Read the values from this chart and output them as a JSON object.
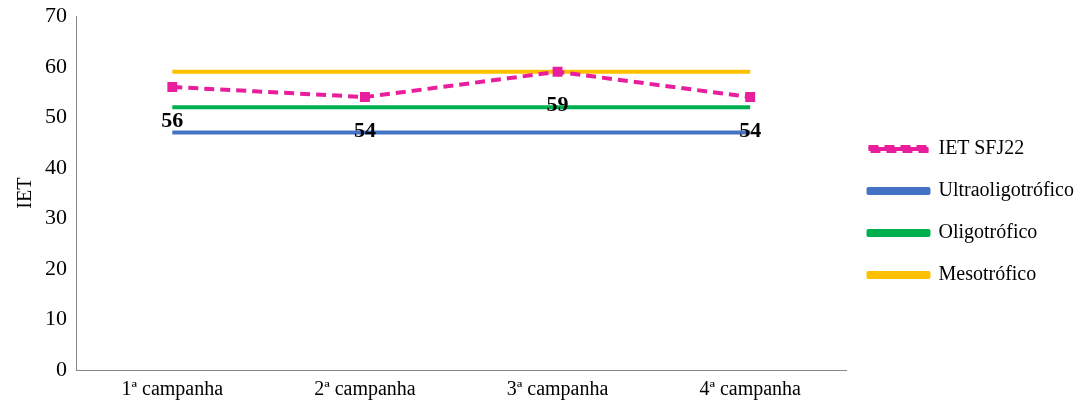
{
  "chart_data": {
    "type": "line",
    "ylabel": "IET",
    "categories": [
      "1ª campanha",
      "2ª campanha",
      "3ª campanha",
      "4ª campanha"
    ],
    "ylim": [
      0,
      70
    ],
    "yticks": [
      0,
      10,
      20,
      30,
      40,
      50,
      60,
      70
    ],
    "grid": false,
    "legend": "right",
    "series": [
      {
        "name": "IET SFJ22",
        "color": "#e81e9c",
        "values": [
          56,
          54,
          59,
          54
        ],
        "marker": "square",
        "line_style": "dashed",
        "value_labels": [
          "56",
          "54",
          "59",
          "54"
        ]
      },
      {
        "name": "Ultraoligotrófico",
        "color": "#4472c4",
        "values": [
          47,
          47,
          47,
          47
        ],
        "marker": "none",
        "line_style": "solid"
      },
      {
        "name": "Oligotrófico",
        "color": "#00b050",
        "values": [
          52,
          52,
          52,
          52
        ],
        "marker": "none",
        "line_style": "solid"
      },
      {
        "name": "Mesotrófico",
        "color": "#ffc000",
        "values": [
          59,
          59,
          59,
          59
        ],
        "marker": "none",
        "line_style": "solid"
      }
    ]
  }
}
